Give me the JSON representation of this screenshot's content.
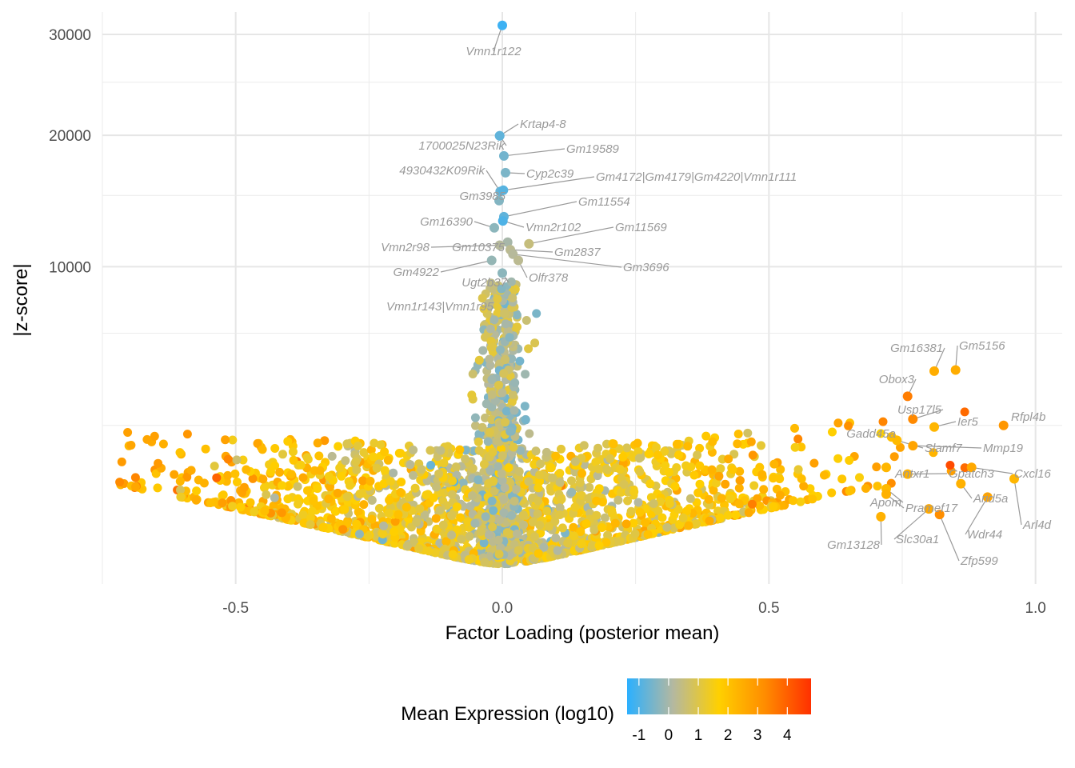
{
  "chart_data": {
    "type": "scatter",
    "xlabel": "Factor Loading (posterior mean)",
    "ylabel": "|z-score|",
    "xlim": [
      -0.75,
      1.05
    ],
    "y_scale": "sqrt",
    "ylim": [
      0,
      32500
    ],
    "x_ticks": [
      -0.5,
      0.0,
      0.5,
      1.0
    ],
    "x_tick_labels": [
      "-0.5",
      "0.0",
      "0.5",
      "1.0"
    ],
    "y_ticks": [
      10000,
      20000,
      30000
    ],
    "y_tick_labels": [
      "10000",
      "20000",
      "30000"
    ],
    "grid": true,
    "legend": {
      "title": "Mean Expression (log10)",
      "position": "bottom",
      "range": [
        -1.4,
        4.8
      ],
      "ticks": [
        -1,
        0,
        1,
        2,
        3,
        4
      ],
      "tick_labels": [
        "-1",
        "0",
        "1",
        "2",
        "3",
        "4"
      ],
      "colors": [
        "#2bb0ff",
        "#b4b8a0",
        "#ffd000",
        "#ff8c00",
        "#ff3000"
      ]
    },
    "labeled_points": [
      {
        "label": "Vmn1r122",
        "x": 0.0,
        "y": 31000,
        "expr": -1.2
      },
      {
        "label": "Krtap4-8",
        "x": -0.005,
        "y": 19950,
        "expr": -0.8
      },
      {
        "label": "1700025N23Rik",
        "x": -0.005,
        "y": 19950,
        "expr": -0.8
      },
      {
        "label": "Gm19589",
        "x": 0.003,
        "y": 18200,
        "expr": -0.6
      },
      {
        "label": "Cyp2c39",
        "x": 0.006,
        "y": 16800,
        "expr": -0.5
      },
      {
        "label": "4930432K09Rik",
        "x": -0.004,
        "y": 15300,
        "expr": -0.7
      },
      {
        "label": "Gm4172|Gm4179|Gm4220|Vmn1r111",
        "x": 0.002,
        "y": 15400,
        "expr": -0.9
      },
      {
        "label": "Gm3985",
        "x": -0.006,
        "y": 14600,
        "expr": -0.4
      },
      {
        "label": "Gm11554",
        "x": 0.003,
        "y": 13400,
        "expr": -0.8
      },
      {
        "label": "Vmn2r102",
        "x": 0.001,
        "y": 13100,
        "expr": -1.0
      },
      {
        "label": "Gm16390",
        "x": -0.015,
        "y": 12600,
        "expr": -0.3
      },
      {
        "label": "Gm11569",
        "x": 0.05,
        "y": 11500,
        "expr": 0.5
      },
      {
        "label": "Gm10375",
        "x": 0.01,
        "y": 11600,
        "expr": 0.0
      },
      {
        "label": "Vmn2r98",
        "x": -0.005,
        "y": 11400,
        "expr": 0.2
      },
      {
        "label": "Gm2837",
        "x": 0.015,
        "y": 11100,
        "expr": 0.3
      },
      {
        "label": "Gm3696",
        "x": 0.02,
        "y": 10800,
        "expr": 0.2
      },
      {
        "label": "Gm4922",
        "x": -0.02,
        "y": 10400,
        "expr": -0.2
      },
      {
        "label": "Olfr378",
        "x": 0.03,
        "y": 10400,
        "expr": 0.3
      },
      {
        "label": "Ugt2b37",
        "x": 0.0,
        "y": 9600,
        "expr": -0.3
      },
      {
        "label": "Vmn1r143|Vmn1r95",
        "x": -0.025,
        "y": 7800,
        "expr": 0.4
      },
      {
        "label": "Gm16381",
        "x": 0.81,
        "y": 4500,
        "expr": 2.5
      },
      {
        "label": "Gm5156",
        "x": 0.85,
        "y": 4550,
        "expr": 2.5
      },
      {
        "label": "Obox3",
        "x": 0.76,
        "y": 3500,
        "expr": 3.5
      },
      {
        "label": "Usp17l5",
        "x": 0.77,
        "y": 2700,
        "expr": 3.3
      },
      {
        "label": "Ier5",
        "x": 0.81,
        "y": 2450,
        "expr": 2.3
      },
      {
        "label": "Rfpl4b",
        "x": 0.94,
        "y": 2500,
        "expr": 3.0
      },
      {
        "label": "Gadd45a",
        "x": 0.73,
        "y": 2150,
        "expr": 2.1
      },
      {
        "label": "Slamf7",
        "x": 0.74,
        "y": 2050,
        "expr": 2.2
      },
      {
        "label": "Mmp19",
        "x": 0.77,
        "y": 1900,
        "expr": 2.7
      },
      {
        "label": "Antxr1",
        "x": 0.72,
        "y": 1350,
        "expr": 2.3
      },
      {
        "label": "Gpatch3",
        "x": 0.76,
        "y": 1200,
        "expr": 2.4
      },
      {
        "label": "Cxcl16",
        "x": 0.88,
        "y": 1350,
        "expr": 2.6
      },
      {
        "label": "Apom",
        "x": 0.72,
        "y": 900,
        "expr": 2.2
      },
      {
        "label": "Pramef17",
        "x": 0.72,
        "y": 800,
        "expr": 2.4
      },
      {
        "label": "Arid5a",
        "x": 0.86,
        "y": 1000,
        "expr": 2.4
      },
      {
        "label": "Arl4d",
        "x": 0.96,
        "y": 1100,
        "expr": 2.3
      },
      {
        "label": "Wdr44",
        "x": 0.91,
        "y": 750,
        "expr": 2.7
      },
      {
        "label": "Gm13128",
        "x": 0.71,
        "y": 450,
        "expr": 2.4
      },
      {
        "label": "Slc30a1",
        "x": 0.8,
        "y": 560,
        "expr": 2.6
      },
      {
        "label": "Zfp599",
        "x": 0.82,
        "y": 480,
        "expr": 3.2
      }
    ]
  }
}
